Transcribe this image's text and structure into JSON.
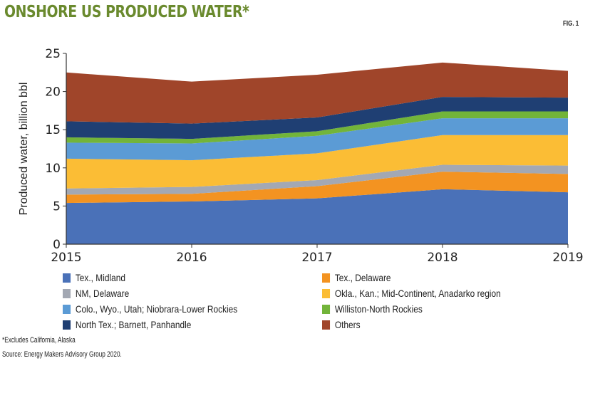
{
  "title": "ONSHORE US PRODUCED WATER*",
  "fig_label": "FIG. 1",
  "footnote": "*Excludes California, Alaska",
  "source": "Source: Energy Makers Advisory Group 2020.",
  "chart_data": {
    "type": "area",
    "stacked": true,
    "title": "ONSHORE US PRODUCED WATER*",
    "xlabel": "",
    "ylabel": "Produced water, billion bbl",
    "x": [
      2015,
      2016,
      2017,
      2018,
      2019
    ],
    "x_tick_labels": [
      "2015",
      "2016",
      "2017",
      "2018",
      "2019"
    ],
    "ylim": [
      0,
      25
    ],
    "y_ticks": [
      0,
      5,
      10,
      15,
      20,
      25
    ],
    "y_tick_labels": [
      "0",
      "5",
      "10",
      "15",
      "20",
      "25"
    ],
    "grid": false,
    "legend_placement": "bottom",
    "series": [
      {
        "name": "Tex., Midland",
        "color": "#4a71b8",
        "values": [
          5.4,
          5.6,
          6.0,
          7.2,
          6.8
        ]
      },
      {
        "name": "Tex., Delaware",
        "color": "#f39321",
        "values": [
          1.1,
          1.0,
          1.6,
          2.3,
          2.4
        ]
      },
      {
        "name": "NM, Delaware",
        "color": "#a3a8b3",
        "values": [
          0.8,
          0.9,
          0.8,
          0.9,
          1.1
        ]
      },
      {
        "name": "Okla., Kan.; Mid-Continent, Anadarko region",
        "color": "#fbbd35",
        "values": [
          3.9,
          3.5,
          3.5,
          3.9,
          4.0
        ]
      },
      {
        "name": "Colo., Wyo., Utah; Niobrara-Lower Rockies",
        "color": "#5b9bd5",
        "values": [
          2.1,
          2.2,
          2.3,
          2.2,
          2.2
        ]
      },
      {
        "name": "Williston-North Rockies",
        "color": "#72b43a",
        "values": [
          0.7,
          0.6,
          0.6,
          0.9,
          0.9
        ]
      },
      {
        "name": "North Tex.; Barnett, Panhandle",
        "color": "#1f3f73",
        "values": [
          2.1,
          2.0,
          1.8,
          1.9,
          1.8
        ]
      },
      {
        "name": "Others",
        "color": "#a0452a",
        "values": [
          6.4,
          5.5,
          5.6,
          4.5,
          3.5
        ]
      }
    ]
  }
}
